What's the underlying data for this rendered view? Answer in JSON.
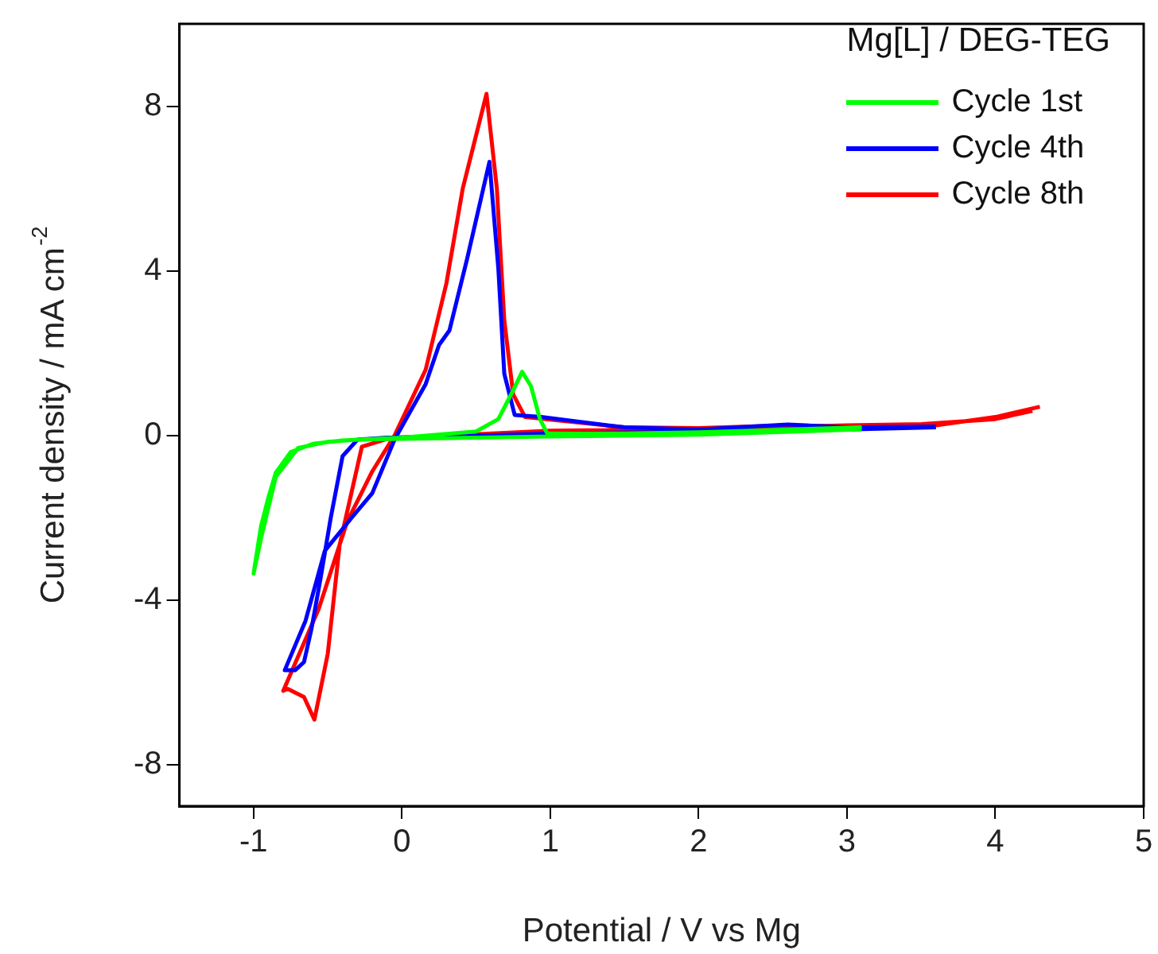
{
  "chart_data": {
    "type": "line",
    "xlabel": "Potential / V vs Mg",
    "ylabel": "Current density / mA cm$^{-2}$",
    "legend_title": "Mg[L] / DEG-TEG",
    "xlim": [
      -1.5,
      5
    ],
    "ylim": [
      -9,
      10
    ],
    "xticks": [
      -1,
      0,
      1,
      2,
      3,
      4,
      5
    ],
    "yticks": [
      -8,
      -4,
      0,
      4,
      8
    ],
    "grid": false,
    "legend": "top right",
    "marker": "none",
    "line_style": "solid",
    "series": [
      {
        "name": "Cycle 1st",
        "color": "#00ff00",
        "x": [
          3.1,
          2,
          1,
          0,
          -0.3,
          -0.5,
          -0.7,
          -0.85,
          -0.95,
          -1.0,
          -0.95,
          -0.9,
          -0.85,
          -0.75,
          -0.6,
          -0.4,
          0,
          0.5,
          0.65,
          0.75,
          0.81,
          0.87,
          0.93,
          0.98,
          1.5,
          2,
          3.1
        ],
        "values": [
          0.15,
          0.02,
          -0.02,
          -0.08,
          -0.1,
          -0.15,
          -0.3,
          -1.0,
          -2.5,
          -3.35,
          -2.2,
          -1.5,
          -0.9,
          -0.4,
          -0.2,
          -0.12,
          -0.05,
          0.1,
          0.4,
          1.1,
          1.55,
          1.2,
          0.4,
          0.05,
          0.05,
          0.08,
          0.2
        ]
      },
      {
        "name": "Cycle 4th",
        "color": "#0000ff",
        "x": [
          3.6,
          3,
          2,
          1,
          0.3,
          -0.1,
          -0.3,
          -0.4,
          -0.48,
          -0.55,
          -0.61,
          -0.66,
          -0.72,
          -0.79,
          -0.65,
          -0.52,
          -0.34,
          -0.2,
          -0.05,
          0.16,
          0.25,
          0.32,
          0.44,
          0.59,
          0.65,
          0.69,
          0.76,
          0.94,
          1.5,
          2,
          2.6,
          3,
          3.6
        ],
        "values": [
          0.2,
          0.15,
          0.1,
          0.05,
          -0.02,
          -0.05,
          -0.1,
          -0.5,
          -2.0,
          -3.5,
          -4.7,
          -5.5,
          -5.7,
          -5.7,
          -4.5,
          -2.8,
          -2.0,
          -1.4,
          -0.1,
          1.25,
          2.2,
          2.55,
          4.3,
          6.65,
          4.05,
          1.5,
          0.5,
          0.45,
          0.2,
          0.15,
          0.27,
          0.2,
          0.22
        ]
      },
      {
        "name": "Cycle 8th",
        "color": "#ff0000",
        "x": [
          4.25,
          4,
          3.5,
          3,
          2,
          1,
          0.3,
          -0.1,
          -0.27,
          -0.42,
          -0.5,
          -0.59,
          -0.66,
          -0.77,
          -0.8,
          -0.56,
          -0.37,
          -0.2,
          -0.05,
          0.16,
          0.3,
          0.41,
          0.57,
          0.64,
          0.69,
          0.75,
          0.83,
          1.5,
          2,
          2.6,
          3,
          3.6,
          4,
          4.3
        ],
        "values": [
          0.6,
          0.4,
          0.28,
          0.25,
          0.15,
          0.12,
          0,
          -0.08,
          -0.27,
          -2.66,
          -5.3,
          -6.9,
          -6.35,
          -6.15,
          -6.2,
          -4.2,
          -2.1,
          -0.87,
          0,
          1.6,
          3.7,
          6.0,
          8.3,
          6.0,
          2.8,
          1.0,
          0.45,
          0.2,
          0.18,
          0.25,
          0.22,
          0.25,
          0.45,
          0.7
        ]
      }
    ]
  }
}
